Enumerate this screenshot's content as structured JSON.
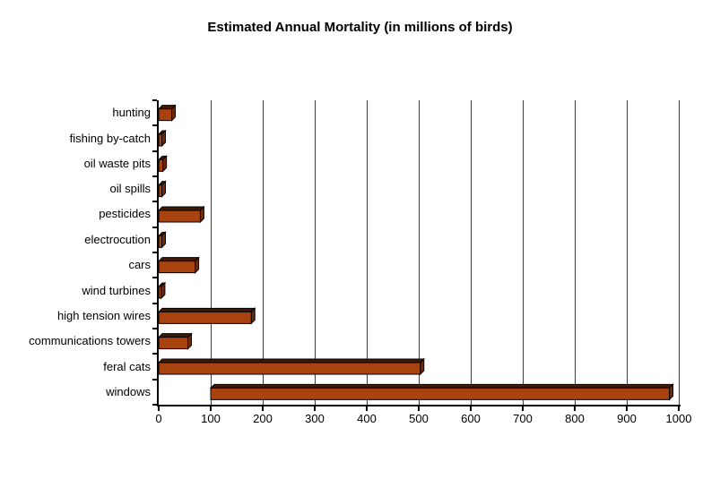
{
  "page": {
    "background": "#ffffff"
  },
  "chart_data": {
    "type": "bar",
    "orientation": "horizontal",
    "title": "Estimated Annual Mortality (in millions of birds)",
    "categories": [
      "hunting",
      "fishing by-catch",
      "oil waste pits",
      "oil spills",
      "pesticides",
      "electrocution",
      "cars",
      "wind turbines",
      "high tension wires",
      "communications towers",
      "feral cats",
      "windows"
    ],
    "bars": [
      {
        "category": "hunting",
        "start": 0,
        "end": 25
      },
      {
        "category": "fishing by-catch",
        "start": 0,
        "end": 6
      },
      {
        "category": "oil waste pits",
        "start": 0,
        "end": 8
      },
      {
        "category": "oil spills",
        "start": 0,
        "end": 6
      },
      {
        "category": "pesticides",
        "start": 0,
        "end": 80
      },
      {
        "category": "electrocution",
        "start": 0,
        "end": 6
      },
      {
        "category": "cars",
        "start": 0,
        "end": 70
      },
      {
        "category": "wind turbines",
        "start": 0,
        "end": 5
      },
      {
        "category": "high tension wires",
        "start": 0,
        "end": 178
      },
      {
        "category": "communications towers",
        "start": 0,
        "end": 56
      },
      {
        "category": "feral cats",
        "start": 0,
        "end": 503
      },
      {
        "category": "windows",
        "start": 100,
        "end": 982
      }
    ],
    "xlabel": "",
    "ylabel": "",
    "xlim": [
      0,
      1000
    ],
    "x_tick_step": 100,
    "x_tick_labels": [
      "0",
      "100",
      "200",
      "300",
      "400",
      "500",
      "600",
      "700",
      "800",
      "900",
      "1000"
    ],
    "grid": true,
    "legend": "none",
    "colors": {
      "bar_front": "#A8430F",
      "bar_top": "#401804",
      "bar_side": "#6E2A0A",
      "bar_outline": "#000000",
      "gridline": "#3F3F3F",
      "axis": "#000000",
      "text": "#000000"
    }
  }
}
